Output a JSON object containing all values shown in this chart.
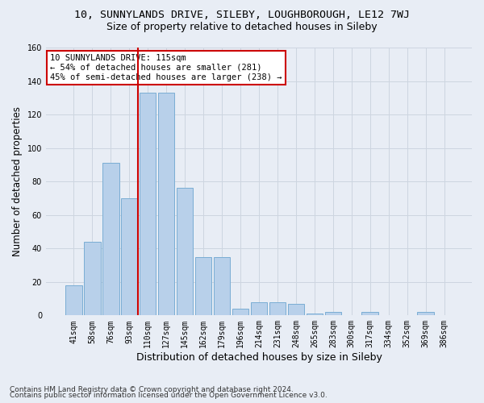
{
  "title_line1": "10, SUNNYLANDS DRIVE, SILEBY, LOUGHBOROUGH, LE12 7WJ",
  "title_line2": "Size of property relative to detached houses in Sileby",
  "xlabel": "Distribution of detached houses by size in Sileby",
  "ylabel": "Number of detached properties",
  "footer_line1": "Contains HM Land Registry data © Crown copyright and database right 2024.",
  "footer_line2": "Contains public sector information licensed under the Open Government Licence v3.0.",
  "categories": [
    "41sqm",
    "58sqm",
    "76sqm",
    "93sqm",
    "110sqm",
    "127sqm",
    "145sqm",
    "162sqm",
    "179sqm",
    "196sqm",
    "214sqm",
    "231sqm",
    "248sqm",
    "265sqm",
    "283sqm",
    "300sqm",
    "317sqm",
    "334sqm",
    "352sqm",
    "369sqm",
    "386sqm"
  ],
  "values": [
    18,
    44,
    91,
    70,
    133,
    133,
    76,
    35,
    35,
    4,
    8,
    8,
    7,
    1,
    2,
    0,
    2,
    0,
    0,
    2,
    0
  ],
  "bar_color": "#b8d0ea",
  "bar_edgecolor": "#7aadd4",
  "red_line_after_index": 3,
  "highlight_color": "#cc0000",
  "annotation_text": "10 SUNNYLANDS DRIVE: 115sqm\n← 54% of detached houses are smaller (281)\n45% of semi-detached houses are larger (238) →",
  "annotation_box_edgecolor": "#cc0000",
  "annotation_box_facecolor": "#ffffff",
  "ylim": [
    0,
    160
  ],
  "yticks": [
    0,
    20,
    40,
    60,
    80,
    100,
    120,
    140,
    160
  ],
  "grid_color": "#cdd5e0",
  "bg_color": "#e8edf5",
  "title_fontsize": 9.5,
  "subtitle_fontsize": 9,
  "tick_fontsize": 7,
  "ylabel_fontsize": 8.5,
  "xlabel_fontsize": 9
}
